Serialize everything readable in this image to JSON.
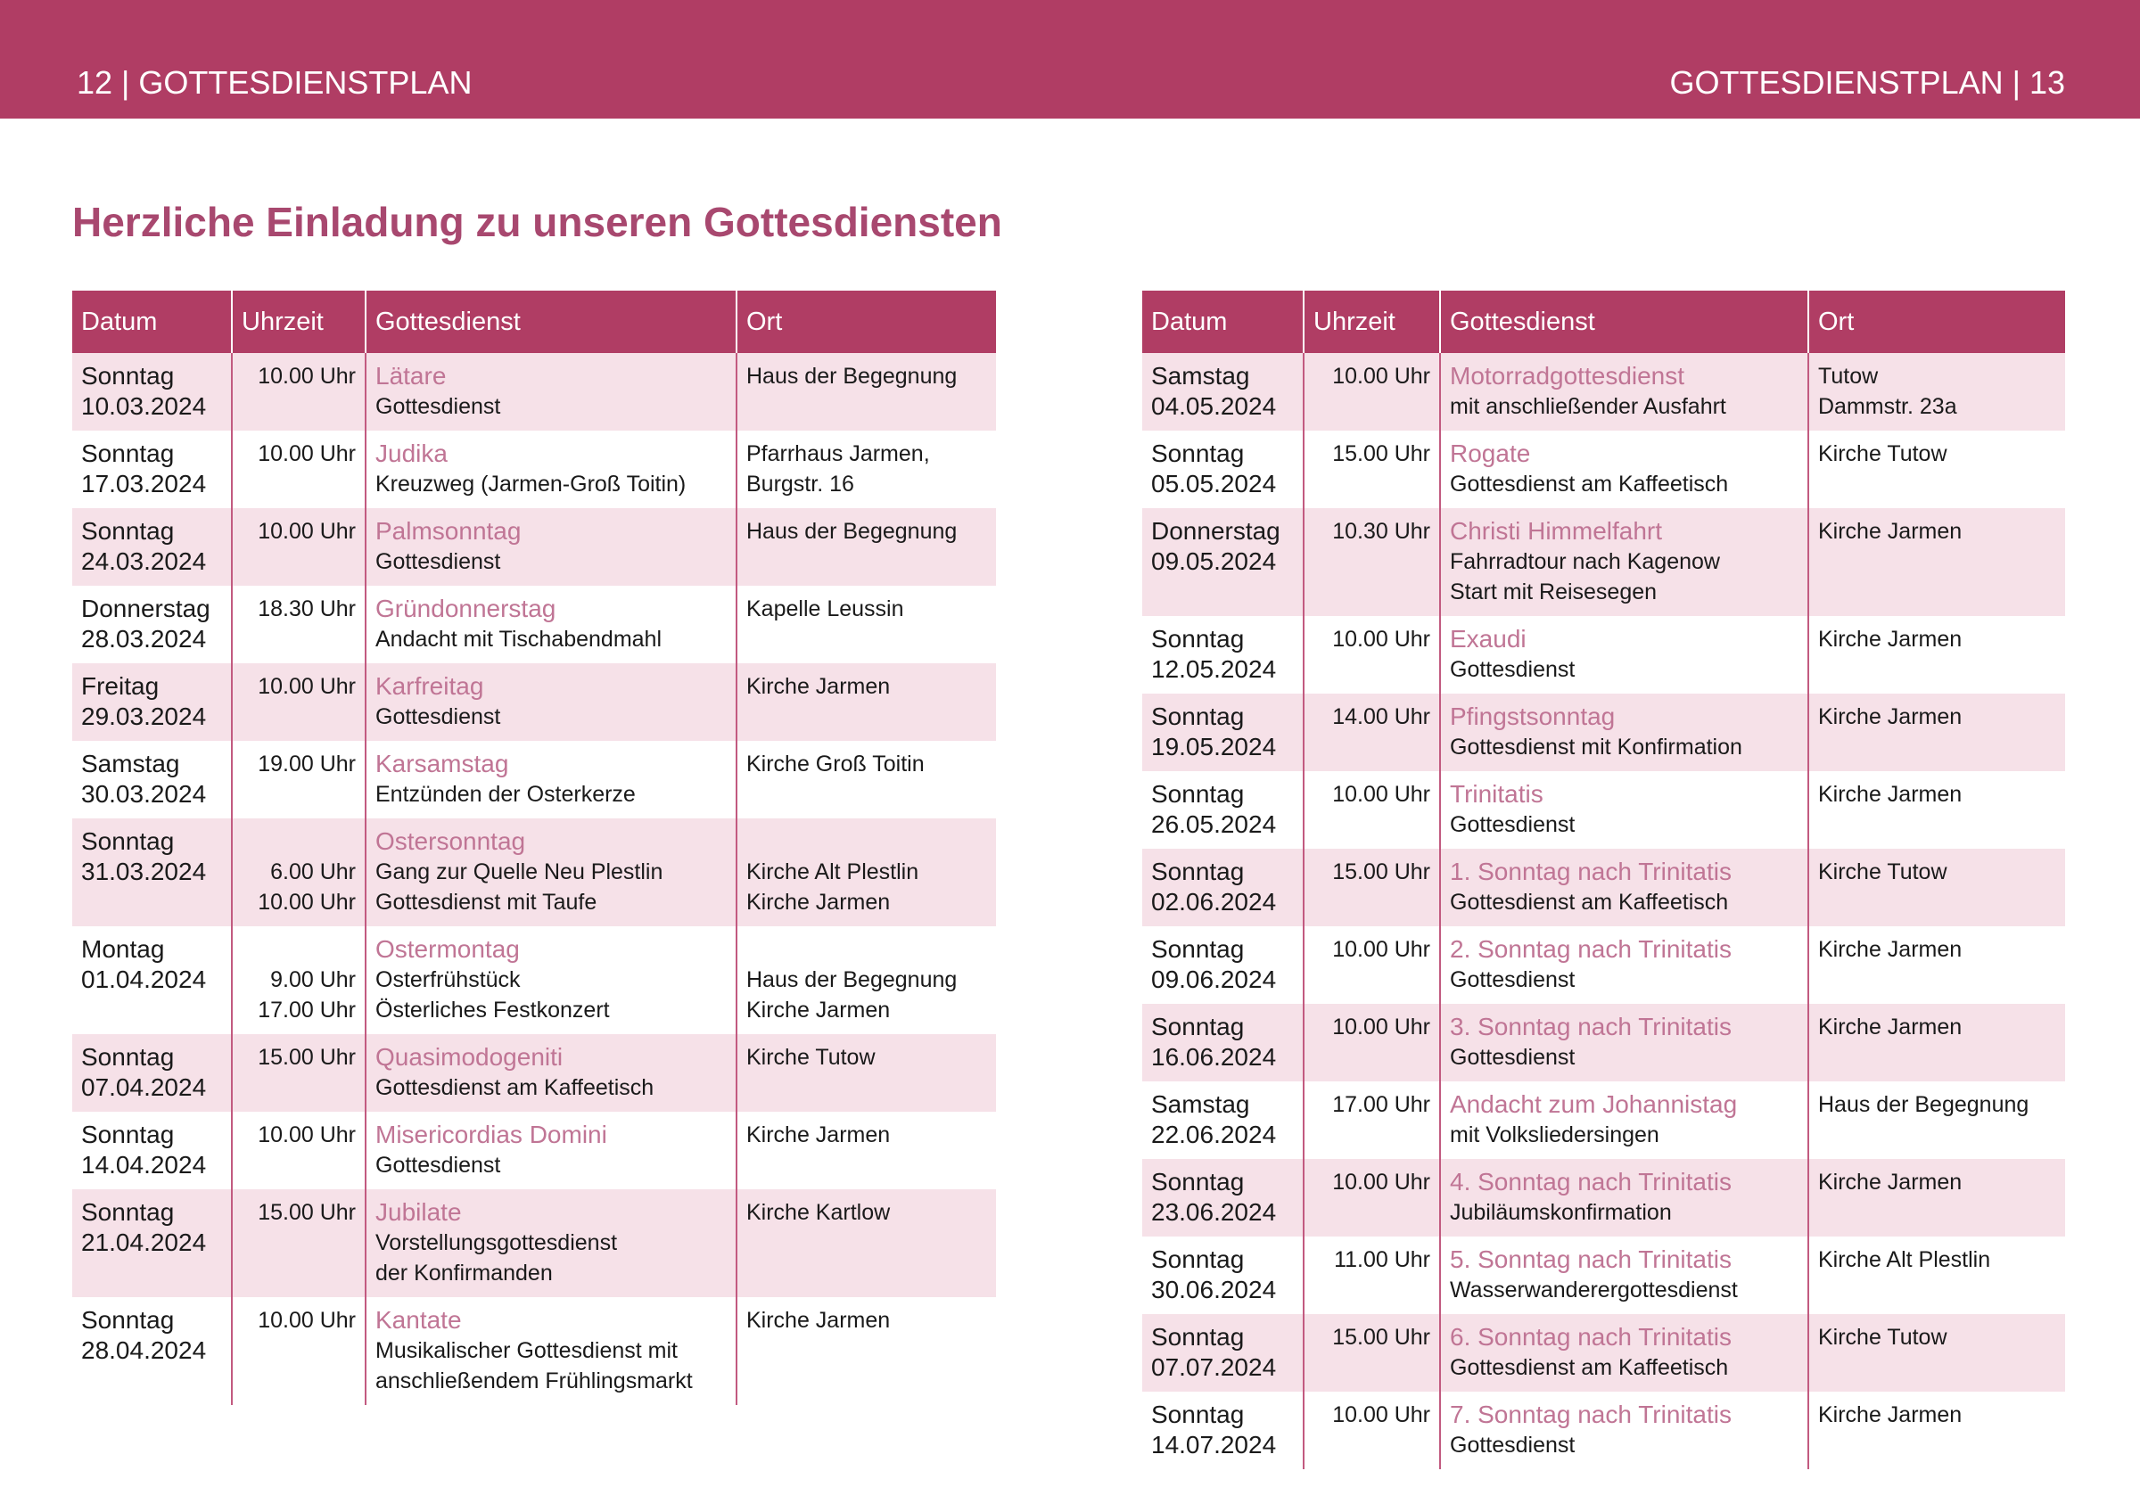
{
  "header": {
    "left": "12 | GOTTESDIENSTPLAN",
    "right": "GOTTESDIENSTPLAN | 13"
  },
  "title": "Herzliche Einladung zu unseren Gottesdiensten",
  "tables": [
    {
      "columns": [
        "Datum",
        "Uhrzeit",
        "Gottesdienst",
        "Ort"
      ],
      "rows": [
        {
          "day": "Sonntag",
          "date": "10.03.2024",
          "time": "10.00 Uhr",
          "name": "Lätare",
          "text": [
            "Gottesdienst"
          ],
          "place": [
            "Haus der Begegnung"
          ]
        },
        {
          "day": "Sonntag",
          "date": "17.03.2024",
          "time": "10.00 Uhr",
          "name": "Judika",
          "text": [
            "Kreuzweg (Jarmen-Groß Toitin)"
          ],
          "place": [
            "Pfarrhaus Jarmen,",
            "Burgstr. 16"
          ]
        },
        {
          "day": "Sonntag",
          "date": "24.03.2024",
          "time": "10.00 Uhr",
          "name": "Palmsonntag",
          "text": [
            "Gottesdienst"
          ],
          "place": [
            "Haus der Begegnung"
          ]
        },
        {
          "day": "Donnerstag",
          "date": "28.03.2024",
          "time": "18.30 Uhr",
          "name": "Gründonnerstag",
          "text": [
            "Andacht mit Tischabendmahl"
          ],
          "place": [
            "Kapelle Leussin"
          ]
        },
        {
          "day": "Freitag",
          "date": "29.03.2024",
          "time": "10.00 Uhr",
          "name": "Karfreitag",
          "text": [
            "Gottesdienst"
          ],
          "place": [
            "Kirche Jarmen"
          ]
        },
        {
          "day": "Samstag",
          "date": "30.03.2024",
          "time": "19.00 Uhr",
          "name": "Karsamstag",
          "text": [
            "Entzünden der Osterkerze"
          ],
          "place": [
            "Kirche Groß Toitin"
          ]
        },
        {
          "day": "Sonntag",
          "date": "31.03.2024",
          "name": "Ostersonntag",
          "items": [
            {
              "time": "6.00 Uhr",
              "text": "Gang zur Quelle Neu Plestlin",
              "place": "Kirche Alt Plestlin"
            },
            {
              "time": "10.00 Uhr",
              "text": "Gottesdienst mit Taufe",
              "place": "Kirche Jarmen"
            }
          ]
        },
        {
          "day": "Montag",
          "date": "01.04.2024",
          "name": "Ostermontag",
          "items": [
            {
              "time": "9.00 Uhr",
              "text": "Osterfrühstück",
              "place": "Haus der Begegnung"
            },
            {
              "time": "17.00 Uhr",
              "text": "Österliches Festkonzert",
              "place": "Kirche Jarmen"
            }
          ]
        },
        {
          "day": "Sonntag",
          "date": "07.04.2024",
          "time": "15.00 Uhr",
          "name": "Quasimodogeniti",
          "text": [
            "Gottesdienst am Kaffeetisch"
          ],
          "place": [
            "Kirche Tutow"
          ]
        },
        {
          "day": "Sonntag",
          "date": "14.04.2024",
          "time": "10.00 Uhr",
          "name": "Misericordias Domini",
          "text": [
            "Gottesdienst"
          ],
          "place": [
            "Kirche Jarmen"
          ]
        },
        {
          "day": "Sonntag",
          "date": "21.04.2024",
          "time": "15.00 Uhr",
          "name": "Jubilate",
          "text": [
            "Vorstellungsgottesdienst",
            "der Konfirmanden"
          ],
          "place": [
            "Kirche Kartlow"
          ]
        },
        {
          "day": "Sonntag",
          "date": "28.04.2024",
          "time": "10.00 Uhr",
          "name": "Kantate",
          "text": [
            "Musikalischer Gottesdienst mit",
            "anschließendem Frühlingsmarkt"
          ],
          "place": [
            "Kirche Jarmen"
          ]
        }
      ]
    },
    {
      "columns": [
        "Datum",
        "Uhrzeit",
        "Gottesdienst",
        "Ort"
      ],
      "rows": [
        {
          "day": "Samstag",
          "date": "04.05.2024",
          "time": "10.00 Uhr",
          "name": "Motorradgottesdienst",
          "text": [
            "mit anschließender Ausfahrt"
          ],
          "place": [
            "Tutow",
            "Dammstr. 23a"
          ]
        },
        {
          "day": "Sonntag",
          "date": "05.05.2024",
          "time": "15.00 Uhr",
          "name": "Rogate",
          "text": [
            "Gottesdienst am Kaffeetisch"
          ],
          "place": [
            "Kirche Tutow"
          ]
        },
        {
          "day": "Donnerstag",
          "date": "09.05.2024",
          "time": "10.30 Uhr",
          "name": "Christi Himmelfahrt",
          "text": [
            "Fahrradtour nach Kagenow",
            "Start mit Reisesegen"
          ],
          "place": [
            "Kirche Jarmen"
          ]
        },
        {
          "day": "Sonntag",
          "date": "12.05.2024",
          "time": "10.00 Uhr",
          "name": "Exaudi",
          "text": [
            "Gottesdienst"
          ],
          "place": [
            "Kirche Jarmen"
          ]
        },
        {
          "day": "Sonntag",
          "date": "19.05.2024",
          "time": "14.00 Uhr",
          "name": "Pfingstsonntag",
          "text": [
            "Gottesdienst mit Konfirmation"
          ],
          "place": [
            "Kirche Jarmen"
          ]
        },
        {
          "day": "Sonntag",
          "date": "26.05.2024",
          "time": "10.00 Uhr",
          "name": "Trinitatis",
          "text": [
            "Gottesdienst"
          ],
          "place": [
            "Kirche Jarmen"
          ]
        },
        {
          "day": "Sonntag",
          "date": "02.06.2024",
          "time": "15.00 Uhr",
          "name": "1. Sonntag nach Trinitatis",
          "text": [
            "Gottesdienst am Kaffeetisch"
          ],
          "place": [
            "Kirche Tutow"
          ]
        },
        {
          "day": "Sonntag",
          "date": "09.06.2024",
          "time": "10.00 Uhr",
          "name": "2. Sonntag nach Trinitatis",
          "text": [
            "Gottesdienst"
          ],
          "place": [
            "Kirche Jarmen"
          ]
        },
        {
          "day": "Sonntag",
          "date": "16.06.2024",
          "time": "10.00 Uhr",
          "name": "3. Sonntag nach Trinitatis",
          "text": [
            "Gottesdienst"
          ],
          "place": [
            "Kirche Jarmen"
          ]
        },
        {
          "day": "Samstag",
          "date": "22.06.2024",
          "time": "17.00 Uhr",
          "name": "Andacht zum Johannistag",
          "text": [
            "mit Volksliedersingen"
          ],
          "place": [
            "Haus der Begegnung"
          ]
        },
        {
          "day": "Sonntag",
          "date": "23.06.2024",
          "time": "10.00 Uhr",
          "name": "4. Sonntag nach Trinitatis",
          "text": [
            "Jubiläumskonfirmation"
          ],
          "place": [
            "Kirche Jarmen"
          ]
        },
        {
          "day": "Sonntag",
          "date": "30.06.2024",
          "time": "11.00 Uhr",
          "name": "5. Sonntag nach Trinitatis",
          "text": [
            "Wasserwanderergottesdienst"
          ],
          "place": [
            "Kirche Alt Plestlin"
          ]
        },
        {
          "day": "Sonntag",
          "date": "07.07.2024",
          "time": "15.00 Uhr",
          "name": "6. Sonntag nach Trinitatis",
          "text": [
            "Gottesdienst am Kaffeetisch"
          ],
          "place": [
            "Kirche Tutow"
          ]
        },
        {
          "day": "Sonntag",
          "date": "14.07.2024",
          "time": "10.00 Uhr",
          "name": "7. Sonntag nach Trinitatis",
          "text": [
            "Gottesdienst"
          ],
          "place": [
            "Kirche Jarmen"
          ]
        }
      ]
    }
  ]
}
